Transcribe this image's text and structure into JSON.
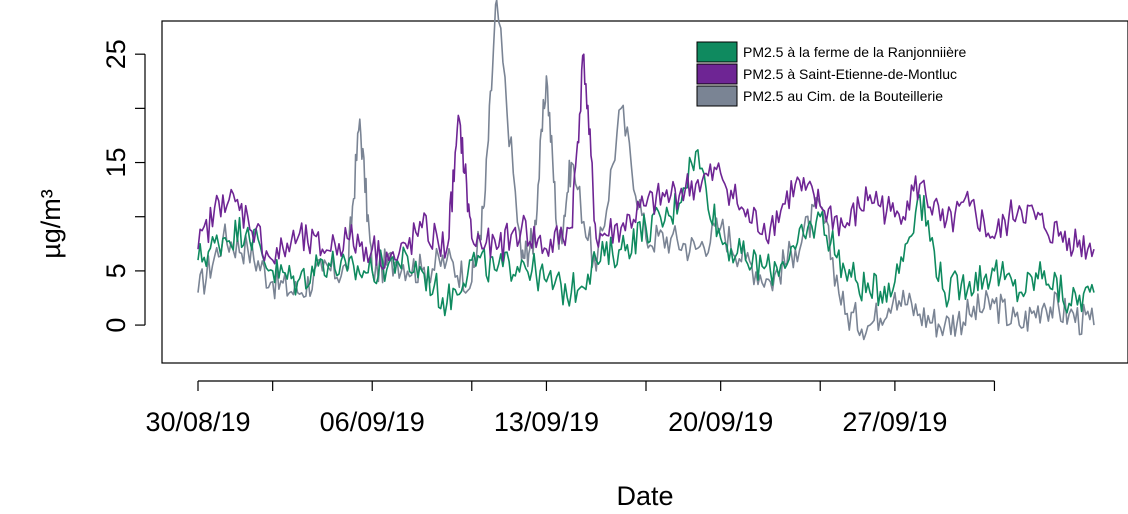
{
  "chart_data": {
    "type": "line",
    "title": "",
    "xlabel": "Date",
    "ylabel": "µg/m³",
    "ylim": [
      -3.5,
      30
    ],
    "xlim": [
      "2019-08-30",
      "2019-10-05"
    ],
    "x_ticks": [
      "2019-08-30",
      "2019-09-02",
      "2019-09-06",
      "2019-09-10",
      "2019-09-13",
      "2019-09-17",
      "2019-09-20",
      "2019-09-24",
      "2019-09-27",
      "2019-10-01"
    ],
    "x_tick_labels": [
      {
        "date": "2019-08-30",
        "label": "30/08/19"
      },
      {
        "date": "2019-09-06",
        "label": "06/09/19"
      },
      {
        "date": "2019-09-13",
        "label": "13/09/19"
      },
      {
        "date": "2019-09-20",
        "label": "20/09/19"
      },
      {
        "date": "2019-09-27",
        "label": "27/09/19"
      }
    ],
    "y_ticks": [
      0,
      5,
      10,
      15,
      20,
      25
    ],
    "y_tick_labels": [
      {
        "value": 0,
        "label": "0"
      },
      {
        "value": 5,
        "label": "5"
      },
      {
        "value": 15,
        "label": "15"
      },
      {
        "value": 25,
        "label": "25"
      }
    ],
    "grid": false,
    "legend_position": "top-right",
    "series": [
      {
        "name": "PM2.5 au Cim. de la Bouteillerie",
        "color": "#7a8494",
        "x": [
          "2019-08-30",
          "2019-08-31",
          "2019-09-01",
          "2019-09-02",
          "2019-09-03",
          "2019-09-04",
          "2019-09-05",
          "2019-09-05T12:00",
          "2019-09-06",
          "2019-09-07",
          "2019-09-08",
          "2019-09-09",
          "2019-09-10",
          "2019-09-10T12:00",
          "2019-09-11",
          "2019-09-12",
          "2019-09-12T12:00",
          "2019-09-13",
          "2019-09-13T12:00",
          "2019-09-14",
          "2019-09-15",
          "2019-09-16",
          "2019-09-17",
          "2019-09-18",
          "2019-09-19",
          "2019-09-20",
          "2019-09-21",
          "2019-09-22",
          "2019-09-23",
          "2019-09-24",
          "2019-09-25",
          "2019-09-26",
          "2019-09-27",
          "2019-09-28",
          "2019-09-29",
          "2019-09-30",
          "2019-10-01",
          "2019-10-02",
          "2019-10-03",
          "2019-10-04",
          "2019-10-05"
        ],
        "y": [
          3,
          8,
          7,
          4,
          3,
          5,
          5,
          19,
          5,
          6,
          5,
          6,
          4,
          11,
          30,
          6,
          8,
          23,
          7,
          15,
          5,
          20,
          8,
          8,
          7,
          9,
          6,
          4,
          7,
          11,
          1,
          0,
          3,
          1,
          0,
          1,
          2,
          0,
          2,
          1,
          0
        ]
      },
      {
        "name": "PM2.5 à la ferme de la Ranjonniière",
        "color": "#0f8a5f",
        "x": [
          "2019-08-30",
          "2019-08-31",
          "2019-09-01",
          "2019-09-02",
          "2019-09-03",
          "2019-09-04",
          "2019-09-05",
          "2019-09-06",
          "2019-09-07",
          "2019-09-08",
          "2019-09-09",
          "2019-09-10",
          "2019-09-11",
          "2019-09-12",
          "2019-09-13",
          "2019-09-14",
          "2019-09-15",
          "2019-09-16",
          "2019-09-17",
          "2019-09-18",
          "2019-09-19",
          "2019-09-20",
          "2019-09-21",
          "2019-09-22",
          "2019-09-23",
          "2019-09-24",
          "2019-09-25",
          "2019-09-26",
          "2019-09-27",
          "2019-09-28",
          "2019-09-29",
          "2019-09-30",
          "2019-10-01",
          "2019-10-02",
          "2019-10-03",
          "2019-10-04",
          "2019-10-05"
        ],
        "y": [
          6,
          8,
          9,
          5,
          4,
          6,
          5,
          5,
          6,
          5,
          2,
          6,
          5,
          6,
          4,
          3,
          6,
          7,
          9,
          10,
          16,
          8,
          6,
          5,
          7,
          10,
          5,
          3,
          4,
          12,
          3,
          4,
          5,
          3,
          5,
          2,
          3
        ]
      },
      {
        "name": "PM2.5 à Saint-Etienne-de-Montluc",
        "color": "#6e2594",
        "x": [
          "2019-08-30",
          "2019-08-31",
          "2019-09-01",
          "2019-09-02",
          "2019-09-03",
          "2019-09-04",
          "2019-09-05",
          "2019-09-06",
          "2019-09-07",
          "2019-09-08",
          "2019-09-09",
          "2019-09-09T12:00",
          "2019-09-10",
          "2019-09-11",
          "2019-09-12",
          "2019-09-13",
          "2019-09-14",
          "2019-09-14T12:00",
          "2019-09-15",
          "2019-09-16",
          "2019-09-17",
          "2019-09-18",
          "2019-09-19",
          "2019-09-20",
          "2019-09-21",
          "2019-09-22",
          "2019-09-23",
          "2019-09-24",
          "2019-09-25",
          "2019-09-26",
          "2019-09-27",
          "2019-09-28",
          "2019-09-29",
          "2019-09-30",
          "2019-10-01",
          "2019-10-02",
          "2019-10-03",
          "2019-10-04",
          "2019-10-05"
        ],
        "y": [
          7,
          12,
          10,
          6,
          8,
          7,
          8,
          7,
          6,
          9,
          7,
          19,
          8,
          7,
          9,
          7,
          9,
          25,
          8,
          9,
          11,
          12,
          13,
          14,
          10,
          9,
          13,
          11,
          9,
          12,
          10,
          13,
          9,
          11,
          8,
          11,
          9,
          8,
          7
        ]
      }
    ]
  }
}
